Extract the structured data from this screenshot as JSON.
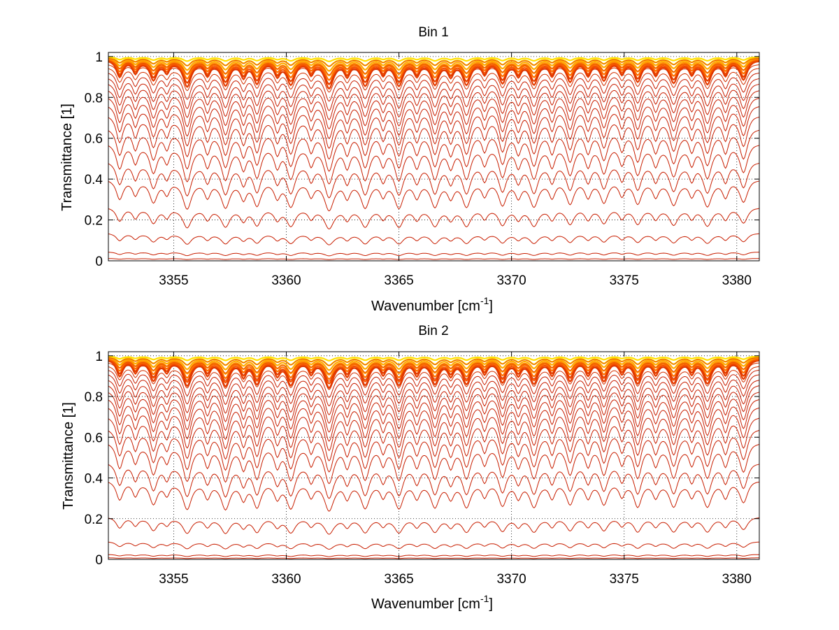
{
  "chart_data": [
    {
      "type": "line",
      "title": "Bin 1",
      "xlabel": "Wavenumber [cm",
      "xlabel_sup": "-1",
      "xlabel_end": "]",
      "ylabel": "Transmittance [1]",
      "xlim": [
        3352.1,
        3381.0
      ],
      "ylim": [
        0,
        1.02
      ],
      "xticks": [
        "3355",
        "3360",
        "3365",
        "3370",
        "3375",
        "3380"
      ],
      "yticks": [
        "0",
        "0.2",
        "0.4",
        "0.6",
        "0.8",
        "1"
      ],
      "grid": true,
      "legend": "none",
      "series_color": "#c81e00",
      "lines_x": [
        3355,
        3360,
        3365,
        3370,
        3375,
        3380
      ],
      "x_step": 0.05,
      "line_peaks": [
        3352.6,
        3353.3,
        3354.1,
        3354.7,
        3355.6,
        3356.5,
        3357.3,
        3358.1,
        3358.7,
        3359.6,
        3360.2,
        3361.1,
        3361.9,
        3362.7,
        3363.5,
        3364.3,
        3365.0,
        3365.8,
        3366.6,
        3367.3,
        3368.0,
        3368.8,
        3369.6,
        3370.3,
        3371.0,
        3371.8,
        3372.6,
        3373.4,
        3374.1,
        3374.9,
        3375.6,
        3376.4,
        3377.2,
        3378.0,
        3378.7,
        3379.5,
        3380.3
      ],
      "line_strengths": [
        0.6,
        0.45,
        0.7,
        0.4,
        0.95,
        0.5,
        0.9,
        0.55,
        0.8,
        0.5,
        0.85,
        0.45,
        1.0,
        0.5,
        0.9,
        0.45,
        0.9,
        0.5,
        0.85,
        0.5,
        0.85,
        0.45,
        0.8,
        0.5,
        0.85,
        0.5,
        0.75,
        0.5,
        0.7,
        0.45,
        0.75,
        0.5,
        0.8,
        0.45,
        0.85,
        0.5,
        0.7
      ],
      "line_widths": [
        0.18,
        0.15,
        0.2,
        0.15,
        0.22,
        0.16,
        0.22,
        0.16,
        0.2,
        0.16,
        0.22,
        0.15,
        0.24,
        0.16,
        0.22,
        0.15,
        0.22,
        0.16,
        0.22,
        0.16,
        0.22,
        0.15,
        0.2,
        0.16,
        0.22,
        0.16,
        0.2,
        0.16,
        0.2,
        0.15,
        0.2,
        0.16,
        0.22,
        0.15,
        0.22,
        0.16,
        0.2
      ],
      "continuum_levels": [
        0.995,
        0.985,
        0.97,
        0.955,
        0.935,
        0.91,
        0.885,
        0.855,
        0.82,
        0.78,
        0.73,
        0.665,
        0.59,
        0.5,
        0.41,
        0.27,
        0.14,
        0.045,
        0.012
      ]
    },
    {
      "type": "line",
      "title": "Bin 2",
      "xlabel": "Wavenumber [cm",
      "xlabel_sup": "-1",
      "xlabel_end": "]",
      "ylabel": "Transmittance [1]",
      "xlim": [
        3352.1,
        3381.0
      ],
      "ylim": [
        0,
        1.02
      ],
      "xticks": [
        "3355",
        "3360",
        "3365",
        "3370",
        "3375",
        "3380"
      ],
      "yticks": [
        "0",
        "0.2",
        "0.4",
        "0.6",
        "0.8",
        "1"
      ],
      "grid": true,
      "legend": "none",
      "series_color": "#c81e00",
      "lines_x": [
        3355,
        3360,
        3365,
        3370,
        3375,
        3380
      ],
      "x_step": 0.05,
      "line_peaks": [
        3352.6,
        3353.3,
        3354.1,
        3354.7,
        3355.6,
        3356.5,
        3357.3,
        3358.1,
        3358.7,
        3359.6,
        3360.2,
        3361.1,
        3361.9,
        3362.7,
        3363.5,
        3364.3,
        3365.0,
        3365.8,
        3366.6,
        3367.3,
        3368.0,
        3368.8,
        3369.6,
        3370.3,
        3371.0,
        3371.8,
        3372.6,
        3373.4,
        3374.1,
        3374.9,
        3375.6,
        3376.4,
        3377.2,
        3378.0,
        3378.7,
        3379.5,
        3380.3
      ],
      "line_strengths": [
        0.6,
        0.45,
        0.75,
        0.4,
        0.95,
        0.5,
        0.95,
        0.55,
        0.85,
        0.5,
        0.9,
        0.45,
        1.0,
        0.5,
        0.9,
        0.45,
        0.9,
        0.5,
        0.85,
        0.5,
        0.85,
        0.45,
        0.8,
        0.5,
        0.85,
        0.5,
        0.75,
        0.5,
        0.75,
        0.45,
        0.85,
        0.5,
        0.85,
        0.45,
        0.85,
        0.5,
        0.7
      ],
      "line_widths": [
        0.18,
        0.15,
        0.2,
        0.15,
        0.22,
        0.16,
        0.22,
        0.16,
        0.2,
        0.16,
        0.22,
        0.15,
        0.24,
        0.16,
        0.22,
        0.15,
        0.22,
        0.16,
        0.22,
        0.16,
        0.22,
        0.15,
        0.2,
        0.16,
        0.22,
        0.16,
        0.2,
        0.16,
        0.2,
        0.15,
        0.2,
        0.16,
        0.22,
        0.15,
        0.22,
        0.16,
        0.2
      ],
      "continuum_levels": [
        0.995,
        0.985,
        0.975,
        0.96,
        0.945,
        0.925,
        0.9,
        0.875,
        0.845,
        0.81,
        0.77,
        0.72,
        0.66,
        0.59,
        0.49,
        0.4,
        0.215,
        0.09,
        0.025,
        0.008
      ]
    }
  ]
}
